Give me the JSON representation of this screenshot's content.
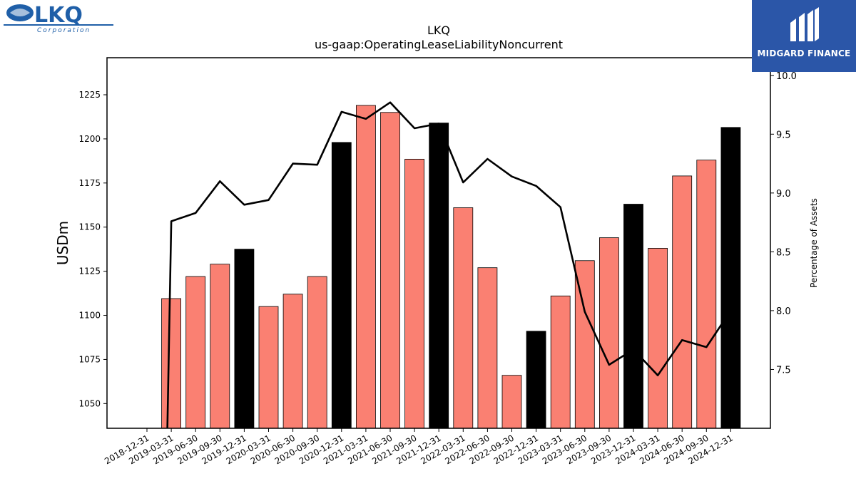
{
  "logo": {
    "text": "LKQ",
    "subtext": "Corporation",
    "color": "#1f5fa8"
  },
  "brand": {
    "text": "MIDGARD FINANCE",
    "background": "#2b56a8"
  },
  "chart_data": {
    "type": "bar",
    "title": "LKQ",
    "subtitle": "us-gaap:OperatingLeaseLiabilityNoncurrent",
    "ylabel": "USDm",
    "y2label": "Percentage of Assets",
    "ylim": [
      1036,
      1246
    ],
    "y2lim": [
      7.0,
      10.15
    ],
    "yticks": [
      1050,
      1075,
      1100,
      1125,
      1150,
      1175,
      1200,
      1225
    ],
    "y2ticks": [
      7.5,
      8.0,
      8.5,
      9.0,
      9.5,
      10.0
    ],
    "categories": [
      "2018-12-31",
      "2019-03-31",
      "2019-06-30",
      "2019-09-30",
      "2019-12-31",
      "2020-03-31",
      "2020-06-30",
      "2020-09-30",
      "2020-12-31",
      "2021-03-31",
      "2021-06-30",
      "2021-09-30",
      "2021-12-31",
      "2022-03-31",
      "2022-06-30",
      "2022-09-30",
      "2022-12-31",
      "2023-03-31",
      "2023-06-30",
      "2023-09-30",
      "2023-12-31",
      "2024-03-31",
      "2024-06-30",
      "2024-09-30",
      "2024-12-31"
    ],
    "series": [
      {
        "type": "bar",
        "values": [
          null,
          1109.5,
          1122,
          1129,
          1137.5,
          1105,
          1112,
          1122,
          1198,
          1219,
          1215,
          1188.5,
          1209,
          1161,
          1127,
          1066,
          1091,
          1111,
          1131,
          1144,
          1163,
          1138,
          1179,
          1188,
          1206.5
        ],
        "colors": [
          "#fa8072",
          "#fa8072",
          "#fa8072",
          "#fa8072",
          "#000000",
          "#fa8072",
          "#fa8072",
          "#fa8072",
          "#000000",
          "#fa8072",
          "#fa8072",
          "#fa8072",
          "#000000",
          "#fa8072",
          "#fa8072",
          "#fa8072",
          "#000000",
          "#fa8072",
          "#fa8072",
          "#fa8072",
          "#000000",
          "#fa8072",
          "#fa8072",
          "#fa8072",
          "#000000"
        ]
      },
      {
        "type": "line",
        "axis": "right",
        "color": "#000000",
        "values": [
          null,
          8.76,
          8.83,
          9.1,
          8.9,
          8.94,
          9.25,
          9.24,
          9.69,
          9.63,
          9.77,
          9.55,
          9.59,
          9.09,
          9.29,
          9.14,
          9.06,
          8.88,
          7.99,
          7.54,
          7.67,
          7.45,
          7.75,
          7.69,
          8.0
        ],
        "drop_start": 6.5
      }
    ],
    "grid": false
  }
}
